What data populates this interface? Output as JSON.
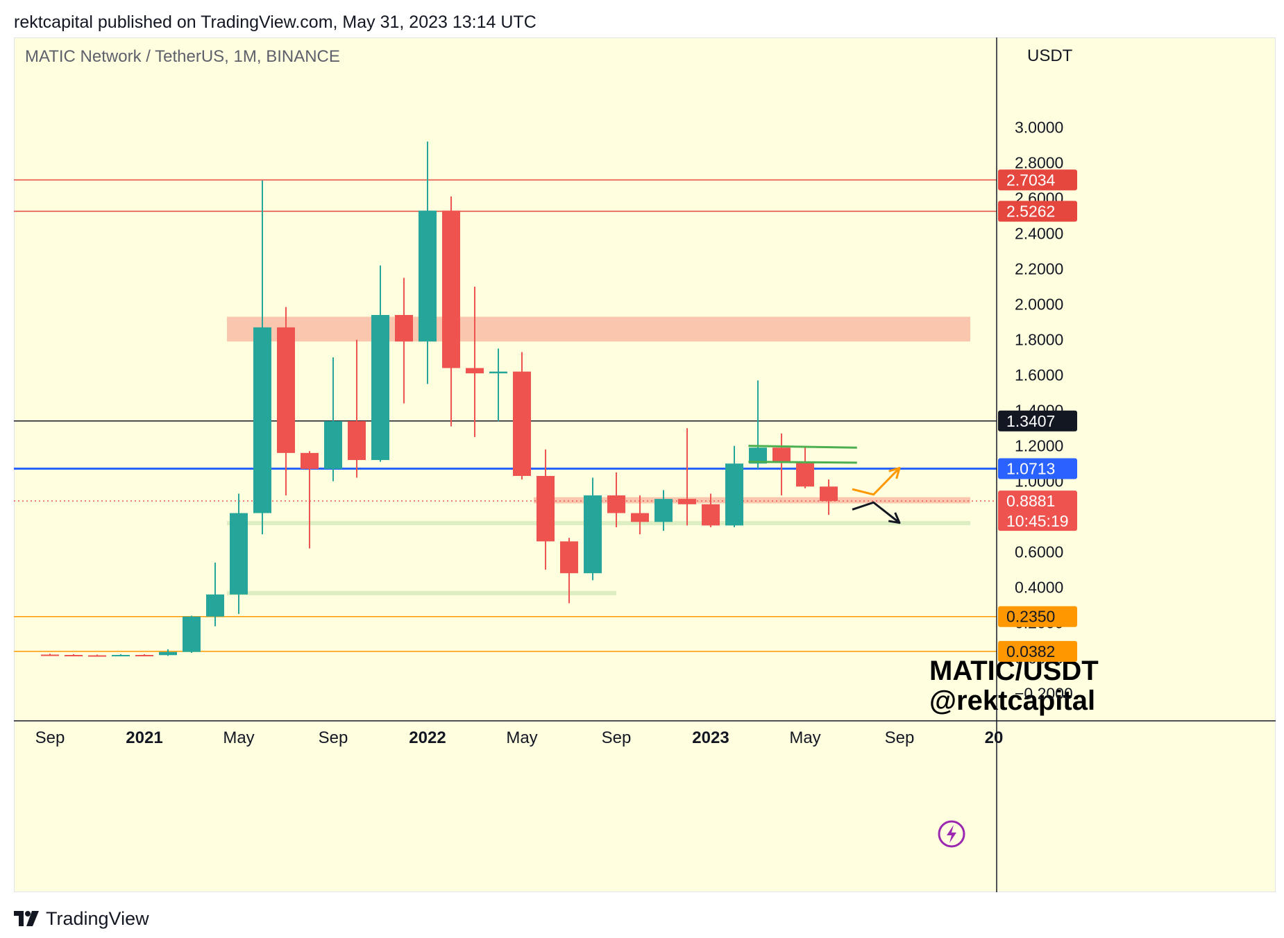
{
  "header": {
    "published": "rektcapital published on TradingView.com, May 31, 2023 13:14 UTC"
  },
  "footer": {
    "brand": "TradingView"
  },
  "colors": {
    "background": "#ffffe0",
    "up": "#26a69a",
    "down": "#ef5350",
    "resistance": "#e5473f",
    "blue": "#2962ff",
    "black": "#131722",
    "orange": "#ff9800",
    "zone_red": "#f9c0a8",
    "zone_green": "#d9edbf"
  },
  "chart_data": {
    "type": "candlestick",
    "symbol_title": "MATIC Network / TetherUS, 1M, BINANCE",
    "currency": "USDT",
    "ylim": [
      -0.28,
      3.25
    ],
    "y_ticks": [
      "3.0000",
      "2.8000",
      "2.6000",
      "2.4000",
      "2.2000",
      "2.0000",
      "1.8000",
      "1.6000",
      "1.4000",
      "1.2000",
      "1.0000",
      "0.6000",
      "0.4000",
      "0.2000",
      "0.0000",
      "−0.2000"
    ],
    "y_tick_values": [
      3.0,
      2.8,
      2.6,
      2.4,
      2.2,
      2.0,
      1.8,
      1.6,
      1.4,
      1.2,
      1.0,
      0.6,
      0.4,
      0.2,
      0.0,
      -0.2
    ],
    "x_labels": [
      {
        "label": "Sep",
        "index": 0,
        "bold": false
      },
      {
        "label": "2021",
        "index": 4,
        "bold": true
      },
      {
        "label": "May",
        "index": 8,
        "bold": false
      },
      {
        "label": "Sep",
        "index": 12,
        "bold": false
      },
      {
        "label": "2022",
        "index": 16,
        "bold": true
      },
      {
        "label": "May",
        "index": 20,
        "bold": false
      },
      {
        "label": "Sep",
        "index": 24,
        "bold": false
      },
      {
        "label": "2023",
        "index": 28,
        "bold": true
      },
      {
        "label": "May",
        "index": 32,
        "bold": false
      },
      {
        "label": "Sep",
        "index": 36,
        "bold": false
      },
      {
        "label": "20",
        "index": 40,
        "bold": true
      }
    ],
    "candles": [
      {
        "month": "2020-09",
        "o": 0.02,
        "h": 0.025,
        "l": 0.012,
        "c": 0.018
      },
      {
        "month": "2020-10",
        "o": 0.018,
        "h": 0.022,
        "l": 0.014,
        "c": 0.016
      },
      {
        "month": "2020-11",
        "o": 0.016,
        "h": 0.02,
        "l": 0.012,
        "c": 0.015
      },
      {
        "month": "2020-12",
        "o": 0.015,
        "h": 0.022,
        "l": 0.012,
        "c": 0.018
      },
      {
        "month": "2021-01",
        "o": 0.018,
        "h": 0.022,
        "l": 0.012,
        "c": 0.017
      },
      {
        "month": "2021-02",
        "o": 0.017,
        "h": 0.05,
        "l": 0.013,
        "c": 0.035
      },
      {
        "month": "2021-03",
        "o": 0.035,
        "h": 0.24,
        "l": 0.03,
        "c": 0.235
      },
      {
        "month": "2021-04",
        "o": 0.235,
        "h": 0.54,
        "l": 0.18,
        "c": 0.36
      },
      {
        "month": "2021-05",
        "o": 0.36,
        "h": 0.93,
        "l": 0.25,
        "c": 0.82
      },
      {
        "month": "2021-06",
        "o": 0.82,
        "h": 2.7,
        "l": 0.7,
        "c": 1.87
      },
      {
        "month": "2021-07",
        "o": 1.87,
        "h": 1.985,
        "l": 0.92,
        "c": 1.16
      },
      {
        "month": "2021-08",
        "o": 1.16,
        "h": 1.17,
        "l": 0.62,
        "c": 1.07
      },
      {
        "month": "2021-09",
        "o": 1.07,
        "h": 1.7,
        "l": 1.0,
        "c": 1.34
      },
      {
        "month": "2021-10",
        "o": 1.34,
        "h": 1.8,
        "l": 1.02,
        "c": 1.12
      },
      {
        "month": "2021-11",
        "o": 1.12,
        "h": 2.22,
        "l": 1.11,
        "c": 1.94
      },
      {
        "month": "2021-12",
        "o": 1.94,
        "h": 2.15,
        "l": 1.44,
        "c": 1.79
      },
      {
        "month": "2022-01",
        "o": 1.79,
        "h": 2.92,
        "l": 1.55,
        "c": 2.53
      },
      {
        "month": "2022-02",
        "o": 2.53,
        "h": 2.61,
        "l": 1.31,
        "c": 1.64
      },
      {
        "month": "2022-03",
        "o": 1.64,
        "h": 2.1,
        "l": 1.25,
        "c": 1.61
      },
      {
        "month": "2022-04",
        "o": 1.61,
        "h": 1.75,
        "l": 1.34,
        "c": 1.62
      },
      {
        "month": "2022-05",
        "o": 1.62,
        "h": 1.73,
        "l": 1.01,
        "c": 1.03
      },
      {
        "month": "2022-06",
        "o": 1.03,
        "h": 1.18,
        "l": 0.5,
        "c": 0.66
      },
      {
        "month": "2022-07",
        "o": 0.66,
        "h": 0.68,
        "l": 0.31,
        "c": 0.48
      },
      {
        "month": "2022-08",
        "o": 0.48,
        "h": 1.02,
        "l": 0.44,
        "c": 0.92
      },
      {
        "month": "2022-09",
        "o": 0.92,
        "h": 1.05,
        "l": 0.74,
        "c": 0.82
      },
      {
        "month": "2022-10",
        "o": 0.82,
        "h": 0.92,
        "l": 0.7,
        "c": 0.77
      },
      {
        "month": "2022-11",
        "o": 0.77,
        "h": 0.95,
        "l": 0.72,
        "c": 0.9
      },
      {
        "month": "2022-12",
        "o": 0.9,
        "h": 1.3,
        "l": 0.75,
        "c": 0.87
      },
      {
        "month": "2023-01",
        "o": 0.87,
        "h": 0.93,
        "l": 0.74,
        "c": 0.75
      },
      {
        "month": "2023-02",
        "o": 0.75,
        "h": 1.2,
        "l": 0.74,
        "c": 1.1
      },
      {
        "month": "2023-03",
        "o": 1.1,
        "h": 1.57,
        "l": 1.07,
        "c": 1.19
      },
      {
        "month": "2023-04",
        "o": 1.19,
        "h": 1.27,
        "l": 0.92,
        "c": 1.11
      },
      {
        "month": "2023-05",
        "o": 1.11,
        "h": 1.19,
        "l": 0.96,
        "c": 0.97
      },
      {
        "month": "2023-06",
        "o": 0.97,
        "h": 1.01,
        "l": 0.81,
        "c": 0.888
      }
    ],
    "price_lines": [
      {
        "value": 2.7034,
        "label": "2.7034",
        "color": "#e5473f",
        "style": "solid",
        "tag_text": "#ffffff"
      },
      {
        "value": 2.5262,
        "label": "2.5262",
        "color": "#e5473f",
        "style": "solid",
        "tag_text": "#ffffff"
      },
      {
        "value": 1.3407,
        "label": "1.3407",
        "color": "#131722",
        "style": "solid",
        "tag_text": "#ffffff"
      },
      {
        "value": 1.0713,
        "label": "1.0713",
        "color": "#2962ff",
        "style": "solid",
        "tag_text": "#ffffff"
      },
      {
        "value": 0.235,
        "label": "0.2350",
        "color": "#ff9800",
        "style": "solid",
        "tag_text": "#131722"
      },
      {
        "value": 0.0382,
        "label": "0.0382",
        "color": "#ff9800",
        "style": "solid",
        "tag_text": "#131722"
      }
    ],
    "current_price": {
      "value": 0.8881,
      "label": "0.8881",
      "countdown": "10:45:19",
      "color": "#ef5350"
    },
    "zones": [
      {
        "from_index": 7.5,
        "to_index": 39.0,
        "low": 1.79,
        "high": 1.93,
        "color": "#f9c0a8"
      },
      {
        "from_index": 20.5,
        "to_index": 39.0,
        "low": 0.875,
        "high": 0.91,
        "color": "#f9c0a8"
      },
      {
        "from_index": 7.5,
        "to_index": 39.0,
        "low": 0.755,
        "high": 0.775,
        "color": "#d9edbf"
      },
      {
        "from_index": 7.5,
        "to_index": 24.0,
        "low": 0.355,
        "high": 0.38,
        "color": "#d9edbf"
      }
    ],
    "channel_lines": [
      {
        "from_index": 29.6,
        "to_index": 34.2,
        "from_value": 1.2,
        "to_value": 1.19,
        "color": "#4caf50"
      },
      {
        "from_index": 29.6,
        "to_index": 34.2,
        "from_value": 1.11,
        "to_value": 1.105,
        "color": "#4caf50"
      }
    ],
    "projections": [
      {
        "color": "#ff9800",
        "points": [
          [
            34.0,
            0.955
          ],
          [
            34.9,
            0.925
          ],
          [
            36.0,
            1.075
          ]
        ]
      },
      {
        "color": "#131722",
        "points": [
          [
            34.0,
            0.84
          ],
          [
            34.9,
            0.88
          ],
          [
            36.0,
            0.765
          ]
        ]
      }
    ],
    "watermark": [
      "MATIC/USDT",
      "@rektcapital"
    ]
  }
}
